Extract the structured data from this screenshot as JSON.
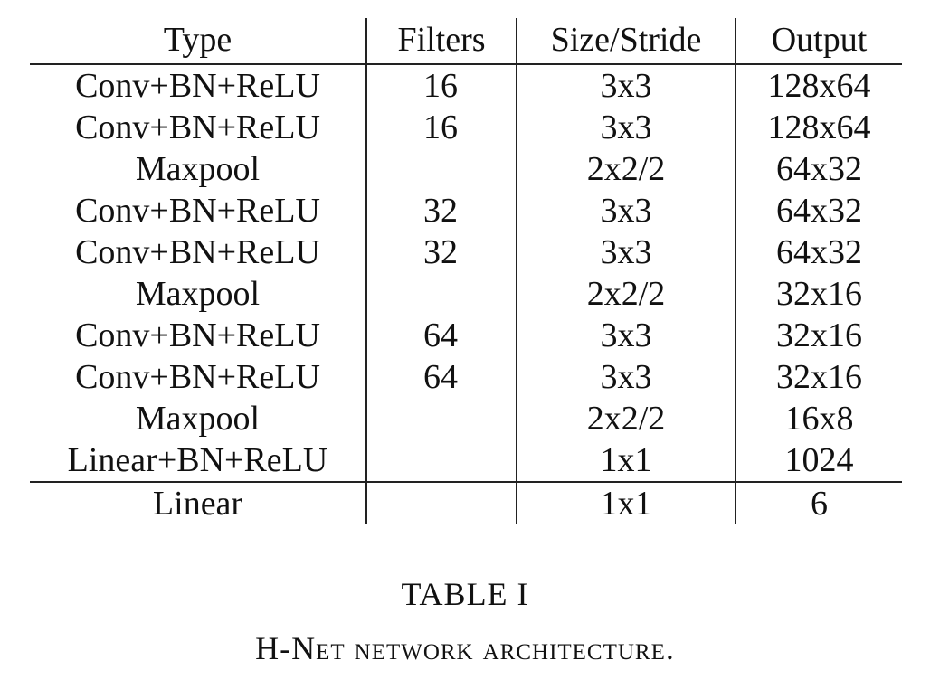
{
  "table": {
    "headers": {
      "type": "Type",
      "filters": "Filters",
      "size_stride": "Size/Stride",
      "output": "Output"
    },
    "rows": [
      {
        "type": "Conv+BN+ReLU",
        "filters": "16",
        "size_stride": "3x3",
        "output": "128x64"
      },
      {
        "type": "Conv+BN+ReLU",
        "filters": "16",
        "size_stride": "3x3",
        "output": "128x64"
      },
      {
        "type": "Maxpool",
        "filters": "",
        "size_stride": "2x2/2",
        "output": "64x32"
      },
      {
        "type": "Conv+BN+ReLU",
        "filters": "32",
        "size_stride": "3x3",
        "output": "64x32"
      },
      {
        "type": "Conv+BN+ReLU",
        "filters": "32",
        "size_stride": "3x3",
        "output": "64x32"
      },
      {
        "type": "Maxpool",
        "filters": "",
        "size_stride": "2x2/2",
        "output": "32x16"
      },
      {
        "type": "Conv+BN+ReLU",
        "filters": "64",
        "size_stride": "3x3",
        "output": "32x16"
      },
      {
        "type": "Conv+BN+ReLU",
        "filters": "64",
        "size_stride": "3x3",
        "output": "32x16"
      },
      {
        "type": "Maxpool",
        "filters": "",
        "size_stride": "2x2/2",
        "output": "16x8"
      },
      {
        "type": "Linear+BN+ReLU",
        "filters": "",
        "size_stride": "1x1",
        "output": "1024"
      },
      {
        "type": "Linear",
        "filters": "",
        "size_stride": "1x1",
        "output": "6"
      }
    ]
  },
  "caption": {
    "label": "TABLE I",
    "title": "H-Net network architecture."
  }
}
